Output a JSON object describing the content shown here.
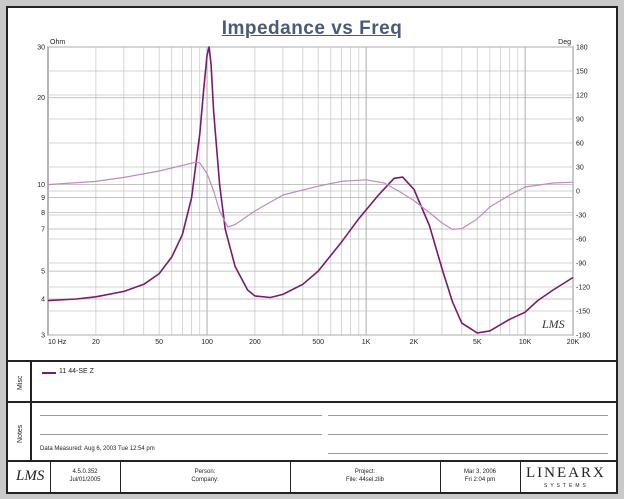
{
  "chart_data": {
    "type": "line",
    "title": "Impedance vs Freq",
    "x_scale": "log",
    "xlim": [
      10,
      20000
    ],
    "x_ticks": [
      {
        "v": 10,
        "label": "10 Hz"
      },
      {
        "v": 20,
        "label": "20"
      },
      {
        "v": 50,
        "label": "50"
      },
      {
        "v": 100,
        "label": "100"
      },
      {
        "v": 200,
        "label": "200"
      },
      {
        "v": 500,
        "label": "500"
      },
      {
        "v": 1000,
        "label": "1K"
      },
      {
        "v": 2000,
        "label": "2K"
      },
      {
        "v": 5000,
        "label": "5K"
      },
      {
        "v": 10000,
        "label": "10K"
      },
      {
        "v": 20000,
        "label": "20K"
      }
    ],
    "y_left": {
      "unit": "Ohm",
      "scale": "log",
      "lim": [
        3,
        30
      ],
      "ticks": [
        {
          "v": 3,
          "label": "3"
        },
        {
          "v": 4,
          "label": "4"
        },
        {
          "v": 5,
          "label": "5"
        },
        {
          "v": 7,
          "label": "7"
        },
        {
          "v": 8,
          "label": "8"
        },
        {
          "v": 9,
          "label": "9"
        },
        {
          "v": 10,
          "label": "10"
        },
        {
          "v": 20,
          "label": "20"
        },
        {
          "v": 30,
          "label": "30"
        }
      ]
    },
    "y_right": {
      "unit": "Deg",
      "scale": "linear",
      "lim": [
        -180,
        180
      ],
      "ticks": [
        {
          "v": 180,
          "label": "180"
        },
        {
          "v": 150,
          "label": "150"
        },
        {
          "v": 120,
          "label": "120"
        },
        {
          "v": 90,
          "label": "90"
        },
        {
          "v": 60,
          "label": "60"
        },
        {
          "v": 30,
          "label": "30"
        },
        {
          "v": 0,
          "label": "0"
        },
        {
          "v": -30,
          "label": "-30"
        },
        {
          "v": -60,
          "label": "-60"
        },
        {
          "v": -90,
          "label": "-90"
        },
        {
          "v": -120,
          "label": "-120"
        },
        {
          "v": -150,
          "label": "-150"
        },
        {
          "v": -180,
          "label": "-180"
        }
      ]
    },
    "grid": true,
    "series": [
      {
        "name": "11  44-SE Z",
        "axis": "left",
        "color": "#7a1a6e",
        "points": [
          [
            10,
            3.95
          ],
          [
            15,
            4.0
          ],
          [
            20,
            4.07
          ],
          [
            30,
            4.25
          ],
          [
            40,
            4.5
          ],
          [
            50,
            4.9
          ],
          [
            60,
            5.6
          ],
          [
            70,
            6.7
          ],
          [
            80,
            9.0
          ],
          [
            90,
            15.0
          ],
          [
            95,
            21.0
          ],
          [
            100,
            28.0
          ],
          [
            103,
            30.0
          ],
          [
            106,
            26.0
          ],
          [
            110,
            18.0
          ],
          [
            120,
            10.0
          ],
          [
            130,
            7.0
          ],
          [
            150,
            5.2
          ],
          [
            180,
            4.3
          ],
          [
            200,
            4.1
          ],
          [
            250,
            4.05
          ],
          [
            300,
            4.15
          ],
          [
            400,
            4.5
          ],
          [
            500,
            5.0
          ],
          [
            700,
            6.3
          ],
          [
            900,
            7.6
          ],
          [
            1200,
            9.2
          ],
          [
            1500,
            10.5
          ],
          [
            1700,
            10.6
          ],
          [
            2000,
            9.6
          ],
          [
            2500,
            7.2
          ],
          [
            3000,
            5.1
          ],
          [
            3500,
            3.9
          ],
          [
            4000,
            3.3
          ],
          [
            5000,
            3.05
          ],
          [
            6000,
            3.1
          ],
          [
            8000,
            3.4
          ],
          [
            10000,
            3.6
          ],
          [
            12000,
            3.95
          ],
          [
            15000,
            4.3
          ],
          [
            20000,
            4.75
          ]
        ]
      },
      {
        "name": "Phase",
        "axis": "right",
        "color": "#c08ac0",
        "points": [
          [
            10,
            8
          ],
          [
            20,
            12
          ],
          [
            30,
            17
          ],
          [
            50,
            25
          ],
          [
            70,
            32
          ],
          [
            85,
            36
          ],
          [
            90,
            35
          ],
          [
            100,
            22
          ],
          [
            110,
            0
          ],
          [
            120,
            -25
          ],
          [
            135,
            -45
          ],
          [
            150,
            -42
          ],
          [
            200,
            -25
          ],
          [
            300,
            -5
          ],
          [
            500,
            6
          ],
          [
            700,
            12
          ],
          [
            1000,
            14
          ],
          [
            1300,
            10
          ],
          [
            1600,
            0
          ],
          [
            2000,
            -12
          ],
          [
            2500,
            -27
          ],
          [
            3000,
            -40
          ],
          [
            3500,
            -48
          ],
          [
            4000,
            -47
          ],
          [
            5000,
            -35
          ],
          [
            6000,
            -20
          ],
          [
            8000,
            -5
          ],
          [
            10000,
            5
          ],
          [
            15000,
            10
          ],
          [
            20000,
            11
          ]
        ]
      }
    ]
  },
  "legend": {
    "section_label": "Misc",
    "entry": "11  44-SE Z"
  },
  "notes": {
    "section_label": "Notes",
    "measured": "Data Measured: Aug 6, 2003  Tue 12:54 pm"
  },
  "footer": {
    "version": "4.5.0.352",
    "version_date": "Jul/01/2005",
    "person_label": "Person:",
    "company_label": "Company:",
    "project_label": "Project:",
    "file_label": "File: 44sel.zlib",
    "date": "Mar 3, 2006",
    "time": "Fri 2:04 pm",
    "brand": "LINEARX",
    "brand_sub": "SYSTEMS",
    "logo": "LMS"
  },
  "watermark": "LMS"
}
